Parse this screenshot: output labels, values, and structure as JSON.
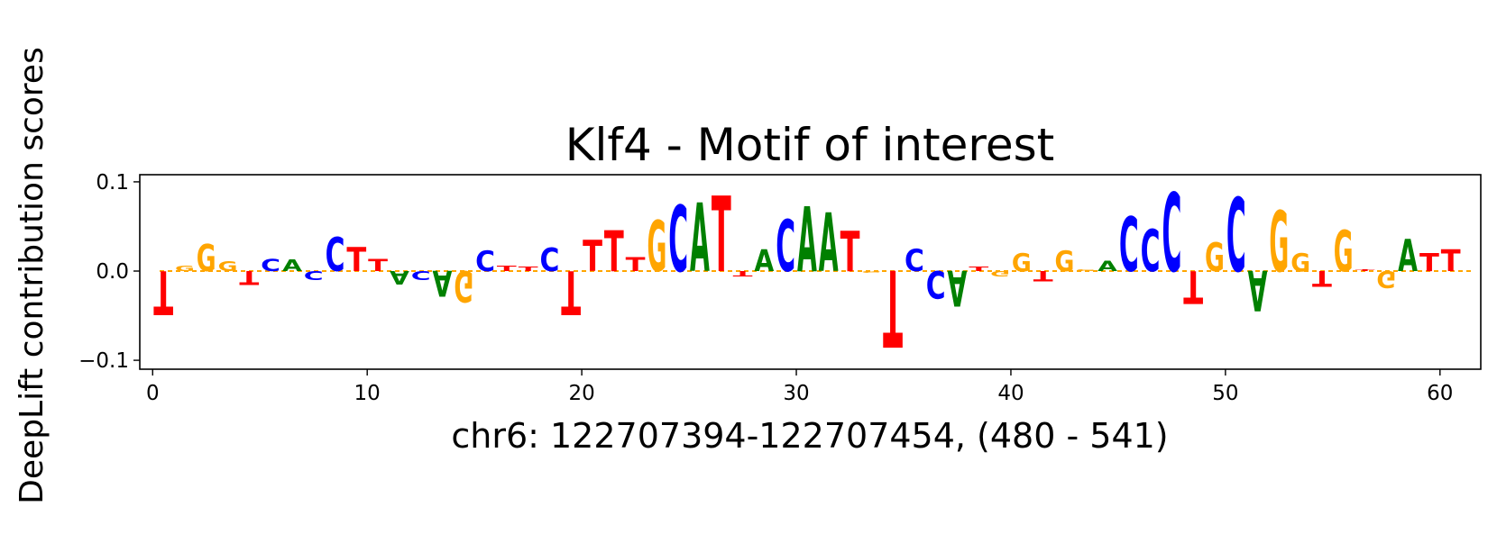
{
  "chart_data": {
    "type": "sequence-logo",
    "title": "Klf4 - Motif of interest",
    "xlabel": "chr6: 122707394-122707454, (480 - 541)",
    "ylabel": "DeepLift contribution scores",
    "xlim": [
      -0.6,
      61.9
    ],
    "ylim": [
      -0.11,
      0.108
    ],
    "xticks": [
      0,
      10,
      20,
      30,
      40,
      50,
      60
    ],
    "xtick_labels": [
      "0",
      "10",
      "20",
      "30",
      "40",
      "50",
      "60"
    ],
    "yticks": [
      -0.1,
      0.0,
      0.1
    ],
    "ytick_labels": [
      "−0.1",
      "0.0",
      "0.1"
    ],
    "colors": {
      "A": "#008000",
      "C": "#0000ff",
      "G": "#ffa500",
      "T": "#ff0000"
    },
    "baseline_color": "#ffa500",
    "positions": [
      {
        "pos": 0,
        "base": "T",
        "score": -0.049
      },
      {
        "pos": 1,
        "base": "G",
        "score": 0.006
      },
      {
        "pos": 2,
        "base": "G",
        "score": 0.03
      },
      {
        "pos": 3,
        "base": "G",
        "score": 0.011
      },
      {
        "pos": 4,
        "base": "T",
        "score": -0.016
      },
      {
        "pos": 5,
        "base": "C",
        "score": 0.014
      },
      {
        "pos": 6,
        "base": "A",
        "score": 0.013
      },
      {
        "pos": 7,
        "base": "C",
        "score": -0.01
      },
      {
        "pos": 8,
        "base": "C",
        "score": 0.038
      },
      {
        "pos": 9,
        "base": "T",
        "score": 0.027
      },
      {
        "pos": 10,
        "base": "T",
        "score": 0.014
      },
      {
        "pos": 11,
        "base": "A",
        "score": -0.015
      },
      {
        "pos": 12,
        "base": "C",
        "score": -0.01
      },
      {
        "pos": 13,
        "base": "A",
        "score": -0.029
      },
      {
        "pos": 14,
        "base": "G",
        "score": -0.035
      },
      {
        "pos": 15,
        "base": "C",
        "score": 0.023
      },
      {
        "pos": 16,
        "base": "T",
        "score": 0.006
      },
      {
        "pos": 17,
        "base": "T",
        "score": 0.005
      },
      {
        "pos": 18,
        "base": "C",
        "score": 0.026
      },
      {
        "pos": 19,
        "base": "T",
        "score": -0.049
      },
      {
        "pos": 20,
        "base": "T",
        "score": 0.035
      },
      {
        "pos": 21,
        "base": "T",
        "score": 0.046
      },
      {
        "pos": 22,
        "base": "T",
        "score": 0.016
      },
      {
        "pos": 23,
        "base": "G",
        "score": 0.057
      },
      {
        "pos": 24,
        "base": "C",
        "score": 0.074
      },
      {
        "pos": 25,
        "base": "A",
        "score": 0.077
      },
      {
        "pos": 26,
        "base": "T",
        "score": 0.085
      },
      {
        "pos": 27,
        "base": "T",
        "score": -0.006
      },
      {
        "pos": 28,
        "base": "A",
        "score": 0.024
      },
      {
        "pos": 29,
        "base": "C",
        "score": 0.058
      },
      {
        "pos": 30,
        "base": "A",
        "score": 0.073
      },
      {
        "pos": 31,
        "base": "A",
        "score": 0.066
      },
      {
        "pos": 32,
        "base": "T",
        "score": 0.045
      },
      {
        "pos": 33,
        "base": "G",
        "score": -0.002
      },
      {
        "pos": 34,
        "base": "T",
        "score": -0.086
      },
      {
        "pos": 35,
        "base": "C",
        "score": 0.025
      },
      {
        "pos": 36,
        "base": "C",
        "score": -0.031
      },
      {
        "pos": 37,
        "base": "A",
        "score": -0.04
      },
      {
        "pos": 38,
        "base": "T",
        "score": 0.005
      },
      {
        "pos": 39,
        "base": "G",
        "score": -0.006
      },
      {
        "pos": 40,
        "base": "G",
        "score": 0.02
      },
      {
        "pos": 41,
        "base": "T",
        "score": -0.012
      },
      {
        "pos": 42,
        "base": "G",
        "score": 0.023
      },
      {
        "pos": 43,
        "base": "G",
        "score": 0.002
      },
      {
        "pos": 44,
        "base": "A",
        "score": 0.012
      },
      {
        "pos": 45,
        "base": "C",
        "score": 0.061
      },
      {
        "pos": 46,
        "base": "C",
        "score": 0.047
      },
      {
        "pos": 47,
        "base": "C",
        "score": 0.088
      },
      {
        "pos": 48,
        "base": "T",
        "score": -0.037
      },
      {
        "pos": 49,
        "base": "G",
        "score": 0.032
      },
      {
        "pos": 50,
        "base": "C",
        "score": 0.083
      },
      {
        "pos": 51,
        "base": "A",
        "score": -0.045
      },
      {
        "pos": 52,
        "base": "G",
        "score": 0.068
      },
      {
        "pos": 53,
        "base": "G",
        "score": 0.02
      },
      {
        "pos": 54,
        "base": "T",
        "score": -0.018
      },
      {
        "pos": 55,
        "base": "G",
        "score": 0.046
      },
      {
        "pos": 56,
        "base": "T",
        "score": 0.002
      },
      {
        "pos": 57,
        "base": "G",
        "score": -0.019
      },
      {
        "pos": 58,
        "base": "A",
        "score": 0.036
      },
      {
        "pos": 59,
        "base": "T",
        "score": 0.02
      },
      {
        "pos": 60,
        "base": "T",
        "score": 0.024
      }
    ]
  }
}
